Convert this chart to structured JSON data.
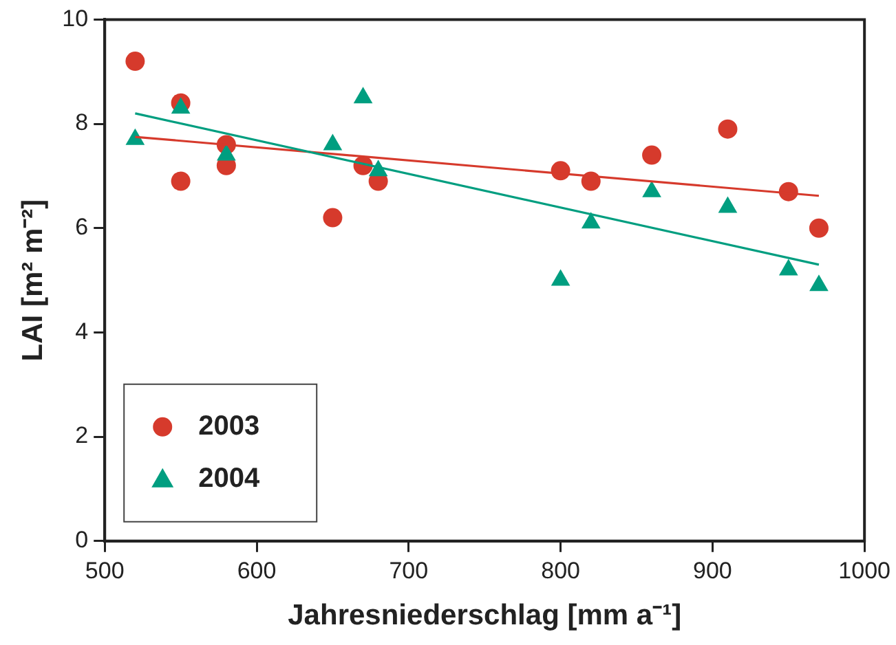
{
  "chart_data": {
    "type": "scatter",
    "xlabel": "Jahresniederschlag [mm a⁻¹]",
    "ylabel": "LAI [m² m⁻²]",
    "xlim": [
      500,
      1000
    ],
    "xticks": [
      500,
      600,
      700,
      800,
      900,
      1000
    ],
    "ylim": [
      0,
      10
    ],
    "yticks": [
      0,
      2,
      4,
      6,
      8,
      10
    ],
    "grid": false,
    "legend": "bottom left",
    "series": [
      {
        "name": "2003",
        "color": "#d63a2c",
        "marker": "circle",
        "x": [
          520,
          550,
          550,
          580,
          580,
          650,
          670,
          680,
          800,
          820,
          860,
          910,
          950,
          970
        ],
        "values": [
          9.2,
          8.4,
          6.9,
          7.6,
          7.2,
          6.2,
          7.2,
          6.9,
          7.1,
          6.9,
          7.4,
          7.9,
          6.7,
          6.0
        ]
      },
      {
        "name": "2004",
        "color": "#009e80",
        "marker": "triangle",
        "x": [
          520,
          550,
          580,
          650,
          670,
          680,
          800,
          820,
          860,
          910,
          950,
          970
        ],
        "values": [
          7.7,
          8.3,
          7.4,
          7.6,
          8.5,
          7.1,
          5.0,
          6.1,
          6.7,
          6.4,
          5.2,
          4.9
        ]
      },
      {
        "type": "line",
        "color": "#d63a2c",
        "x": [
          520,
          970
        ],
        "values": [
          7.75,
          6.62
        ]
      },
      {
        "type": "line",
        "color": "#009e80",
        "x": [
          520,
          970
        ],
        "values": [
          8.2,
          5.3
        ]
      }
    ]
  }
}
